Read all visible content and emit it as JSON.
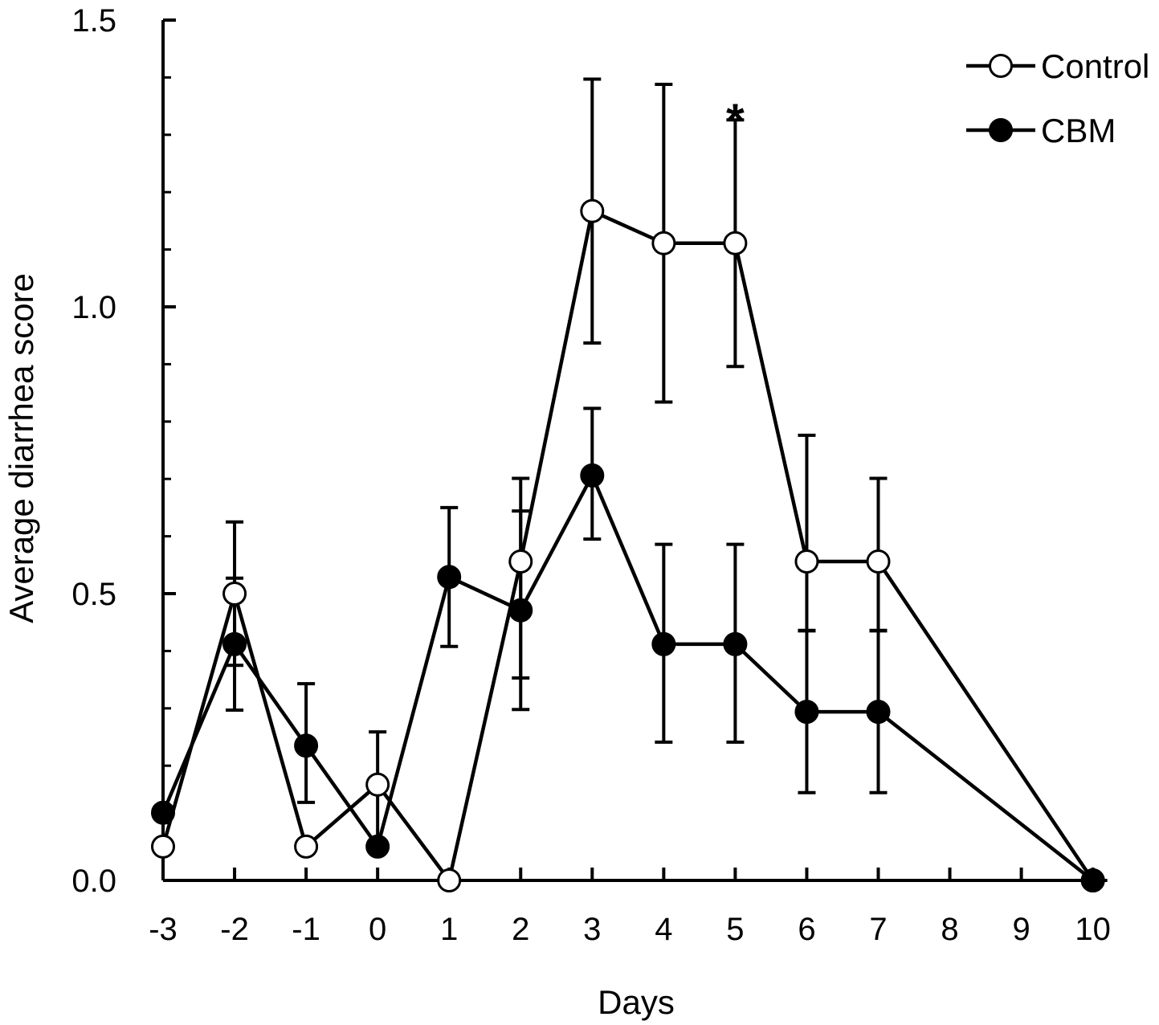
{
  "chart_data": {
    "type": "line",
    "title": "",
    "xlabel": "Days",
    "ylabel": "Average diarrhea score",
    "ylim": [
      0,
      1.5
    ],
    "x_ticks": [
      {
        "label": "-3",
        "value": -3
      },
      {
        "label": "-2",
        "value": -2
      },
      {
        "label": "-1",
        "value": -1
      },
      {
        "label": "0",
        "value": 0
      },
      {
        "label": "1",
        "value": 1
      },
      {
        "label": "2",
        "value": 2
      },
      {
        "label": "3",
        "value": 3
      },
      {
        "label": "4",
        "value": 4
      },
      {
        "label": "5",
        "value": 5
      },
      {
        "label": "6",
        "value": 6
      },
      {
        "label": "7",
        "value": 7
      },
      {
        "label": "8",
        "value": 8
      },
      {
        "label": "9",
        "value": 9
      },
      {
        "label": "10",
        "value": 10
      }
    ],
    "y_ticks": [
      {
        "label": "0.0",
        "value": 0
      },
      {
        "label": "0.5",
        "value": 0.5
      },
      {
        "label": "1.0",
        "value": 1.0
      },
      {
        "label": "1.5",
        "value": 1.5
      }
    ],
    "grid": false,
    "legend_position": "top-right",
    "series": [
      {
        "name": "Control",
        "marker": "open-circle",
        "x": [
          -3,
          -2,
          -1,
          0,
          1,
          2,
          3,
          4,
          5,
          6,
          7,
          10
        ],
        "values": [
          0.059,
          0.5,
          0.059,
          0.167,
          0.0,
          0.556,
          1.167,
          1.111,
          1.111,
          0.556,
          0.556,
          0.0
        ],
        "error_low": [
          0.059,
          0.375,
          0.059,
          0.063,
          0.0,
          0.353,
          0.937,
          0.834,
          0.896,
          0.436,
          0.436,
          0.0
        ],
        "error_high": [
          0.059,
          0.625,
          0.059,
          0.259,
          0.0,
          0.701,
          1.397,
          1.388,
          1.326,
          0.776,
          0.701,
          0.0
        ]
      },
      {
        "name": "CBM",
        "marker": "filled-circle",
        "x": [
          -3,
          -2,
          -1,
          0,
          1,
          2,
          3,
          4,
          5,
          6,
          7,
          10
        ],
        "values": [
          0.118,
          0.412,
          0.235,
          0.059,
          0.529,
          0.471,
          0.706,
          0.412,
          0.412,
          0.294,
          0.294,
          0.0
        ],
        "error_low": [
          0.118,
          0.297,
          0.136,
          0.059,
          0.408,
          0.298,
          0.595,
          0.241,
          0.241,
          0.153,
          0.153,
          0.0
        ],
        "error_high": [
          0.118,
          0.527,
          0.343,
          0.059,
          0.65,
          0.644,
          0.823,
          0.586,
          0.586,
          0.435,
          0.435,
          0.0
        ]
      }
    ],
    "annotations": [
      {
        "text": "*",
        "x": 5,
        "y": 1.35
      }
    ]
  }
}
